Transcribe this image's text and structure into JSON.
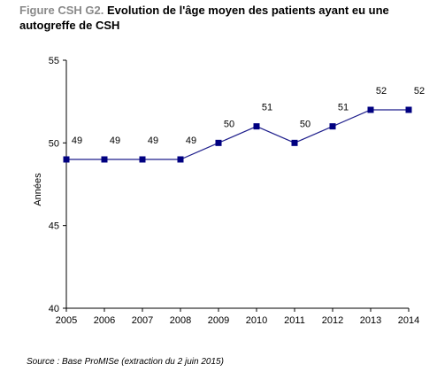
{
  "figure": {
    "prefix": "Figure CSH G2.",
    "title": "Evolution de l'âge moyen des patients ayant eu une autogreffe de CSH"
  },
  "source": "Source : Base ProMISe (extraction du 2 juin 2015)",
  "colors": {
    "line": "#1f1f8c",
    "marker": "#000080",
    "axis": "#000000"
  },
  "chart_data": {
    "type": "line",
    "title": "Evolution de l'âge moyen des patients ayant eu une autogreffe de CSH",
    "xlabel": "",
    "ylabel": "Années",
    "categories": [
      "2005",
      "2006",
      "2007",
      "2008",
      "2009",
      "2010",
      "2011",
      "2012",
      "2013",
      "2014"
    ],
    "series": [
      {
        "values": [
          49,
          49,
          49,
          49,
          50,
          51,
          50,
          51,
          52,
          52
        ],
        "labels": [
          "49",
          "49",
          "49",
          "49",
          "50",
          "51",
          "50",
          "51",
          "52",
          "52"
        ]
      }
    ],
    "ylim": [
      40,
      55
    ],
    "yticks": [
      40,
      45,
      50,
      55
    ],
    "grid": false,
    "legend": "none"
  }
}
